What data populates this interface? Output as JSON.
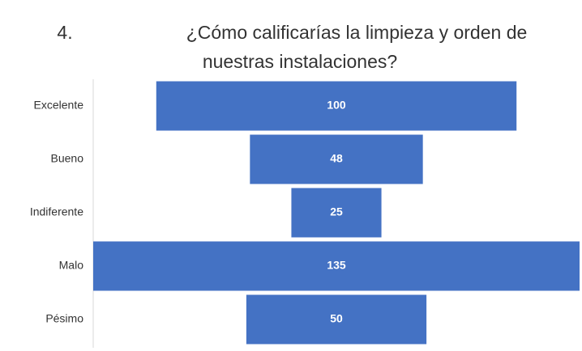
{
  "number": "4.",
  "chart_data": {
    "type": "funnel",
    "title": [
      "¿Cómo calificarías la limpieza y orden de",
      "nuestras instalaciones?"
    ],
    "categories": [
      "Excelente",
      "Bueno",
      "Indiferente",
      "Malo",
      "Pésimo"
    ],
    "values": [
      100,
      48,
      25,
      135,
      50
    ],
    "color": "#4472c4"
  }
}
